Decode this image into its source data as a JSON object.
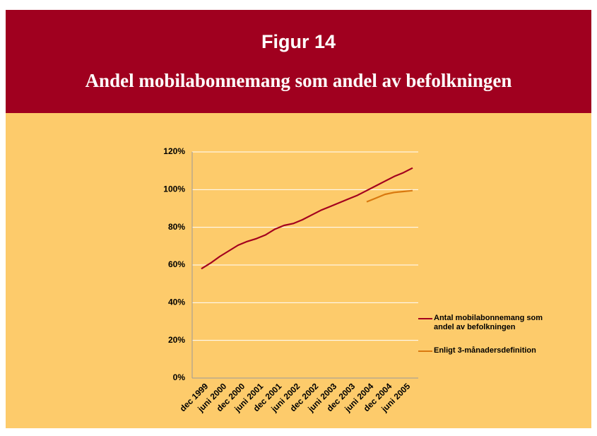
{
  "chart_data": {
    "type": "line",
    "title": "Figur 14",
    "subtitle": "Andel mobilabonnemang som andel av befolkningen",
    "categories": [
      "dec 1999",
      null,
      "juni 2000",
      null,
      "dec 2000",
      null,
      "juni 2001",
      null,
      "dec 2001",
      null,
      "juni 2002",
      null,
      "dec 2002",
      null,
      "juni 2003",
      null,
      "dec 2003",
      null,
      "juni 2004",
      null,
      "dec 2004",
      null,
      "juni 2005",
      null
    ],
    "series": [
      {
        "name": "Antal mobilabonnemang som andel av befolkningen",
        "color": "#a3001e",
        "values": [
          58,
          61,
          64.5,
          67.5,
          70.5,
          72.5,
          74,
          76,
          79,
          81,
          82,
          84,
          86.5,
          89,
          91,
          93,
          95,
          97,
          99.5,
          102,
          104.5,
          107,
          109,
          111.5
        ]
      },
      {
        "name": "Enligt 3-månadersdefinition",
        "color": "#d9790f",
        "values": [
          null,
          null,
          null,
          null,
          null,
          null,
          null,
          null,
          null,
          null,
          null,
          null,
          null,
          null,
          null,
          null,
          null,
          null,
          93.5,
          95.5,
          97.5,
          98.5,
          99,
          99.5
        ]
      }
    ],
    "ylim": [
      0,
      120
    ],
    "yticks": [
      {
        "value": 0,
        "label": "0%"
      },
      {
        "value": 20,
        "label": "20%"
      },
      {
        "value": 40,
        "label": "40%"
      },
      {
        "value": 60,
        "label": "60%"
      },
      {
        "value": 80,
        "label": "80%"
      },
      {
        "value": 100,
        "label": "100%"
      },
      {
        "value": 120,
        "label": "120%"
      }
    ],
    "grid": true,
    "legend": "right"
  }
}
